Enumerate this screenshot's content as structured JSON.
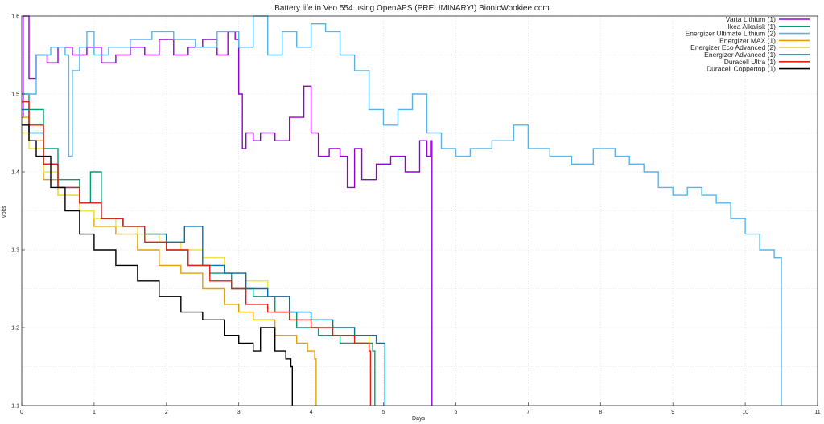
{
  "chart_data": {
    "type": "line",
    "title": "Battery life in Veo 554 using OpenAPS (PRELIMINARY!) BionicWookiee.com",
    "xlabel": "Days",
    "ylabel": "Volts",
    "xlim": [
      0,
      11
    ],
    "ylim": [
      1.1,
      1.6
    ],
    "xticks": [
      0,
      1,
      2,
      3,
      4,
      5,
      6,
      7,
      8,
      9,
      10,
      11
    ],
    "yticks": [
      1.1,
      1.2,
      1.3,
      1.4,
      1.5,
      1.6
    ],
    "ytick_labels": [
      "1.1",
      "1.2",
      "1.3",
      "1.4",
      "1.5",
      "1.6"
    ],
    "grid": true,
    "legend_position": "top-right",
    "step": true,
    "series": [
      {
        "name": "Varta Lithium (1)",
        "color": "#9400d3",
        "x": [
          0,
          0.02,
          0.1,
          0.2,
          0.35,
          0.5,
          0.7,
          0.9,
          1.1,
          1.3,
          1.5,
          1.7,
          1.9,
          2.1,
          2.3,
          2.5,
          2.7,
          2.85,
          2.95,
          3.0,
          3.05,
          3.1,
          3.2,
          3.3,
          3.5,
          3.7,
          3.9,
          4.0,
          4.1,
          4.25,
          4.4,
          4.5,
          4.6,
          4.7,
          4.9,
          5.1,
          5.3,
          5.5,
          5.6,
          5.65,
          5.67
        ],
        "y": [
          1.47,
          1.6,
          1.52,
          1.55,
          1.54,
          1.56,
          1.55,
          1.56,
          1.54,
          1.55,
          1.56,
          1.55,
          1.57,
          1.55,
          1.56,
          1.57,
          1.55,
          1.58,
          1.57,
          1.5,
          1.43,
          1.45,
          1.44,
          1.45,
          1.44,
          1.47,
          1.51,
          1.45,
          1.42,
          1.43,
          1.42,
          1.38,
          1.43,
          1.39,
          1.41,
          1.42,
          1.4,
          1.44,
          1.42,
          1.44,
          1.1
        ]
      },
      {
        "name": "Ikea Alkalisk (1)",
        "color": "#009e73",
        "x": [
          0,
          0.1,
          0.3,
          0.5,
          0.8,
          0.95,
          1.1,
          1.4,
          1.7,
          2.0,
          2.3,
          2.6,
          2.9,
          3.2,
          3.5,
          3.8,
          4.1,
          4.4,
          4.7,
          4.85,
          4.88
        ],
        "y": [
          1.5,
          1.48,
          1.43,
          1.39,
          1.36,
          1.4,
          1.34,
          1.33,
          1.32,
          1.3,
          1.28,
          1.27,
          1.25,
          1.24,
          1.22,
          1.2,
          1.19,
          1.18,
          1.18,
          1.17,
          1.1
        ]
      },
      {
        "name": "Energizer Ultimate Lithium (2)",
        "color": "#56b4e9",
        "x": [
          0,
          0.2,
          0.4,
          0.6,
          0.65,
          0.7,
          0.8,
          0.9,
          1.0,
          1.2,
          1.5,
          1.8,
          2.1,
          2.4,
          2.7,
          3.0,
          3.2,
          3.4,
          3.6,
          3.8,
          4.0,
          4.2,
          4.4,
          4.6,
          4.8,
          5.0,
          5.2,
          5.4,
          5.6,
          5.8,
          6.0,
          6.2,
          6.5,
          6.8,
          7.0,
          7.3,
          7.6,
          7.9,
          8.2,
          8.4,
          8.6,
          8.8,
          9.0,
          9.2,
          9.4,
          9.6,
          9.8,
          10.0,
          10.2,
          10.4,
          10.5
        ],
        "y": [
          1.5,
          1.55,
          1.56,
          1.55,
          1.42,
          1.53,
          1.56,
          1.58,
          1.55,
          1.56,
          1.57,
          1.58,
          1.57,
          1.56,
          1.58,
          1.56,
          1.6,
          1.55,
          1.58,
          1.56,
          1.59,
          1.58,
          1.55,
          1.53,
          1.48,
          1.46,
          1.48,
          1.5,
          1.45,
          1.43,
          1.42,
          1.43,
          1.44,
          1.46,
          1.43,
          1.42,
          1.41,
          1.43,
          1.42,
          1.41,
          1.4,
          1.38,
          1.37,
          1.38,
          1.37,
          1.36,
          1.34,
          1.32,
          1.3,
          1.29,
          1.1
        ]
      },
      {
        "name": "Energizer MAX (1)",
        "color": "#e69f00",
        "x": [
          0,
          0.1,
          0.3,
          0.5,
          0.8,
          1.0,
          1.3,
          1.6,
          1.9,
          2.2,
          2.5,
          2.8,
          3.0,
          3.2,
          3.5,
          3.8,
          3.95,
          4.05,
          4.07
        ],
        "y": [
          1.47,
          1.44,
          1.39,
          1.37,
          1.35,
          1.33,
          1.32,
          1.3,
          1.28,
          1.27,
          1.25,
          1.23,
          1.22,
          1.21,
          1.19,
          1.18,
          1.17,
          1.16,
          1.1
        ]
      },
      {
        "name": "Energizer Eco Advanced (2)",
        "color": "#f0e442",
        "x": [
          0,
          0.1,
          0.3,
          0.5,
          0.8,
          1.0,
          1.3,
          1.6,
          1.9,
          2.2,
          2.5,
          2.8,
          3.1,
          3.4,
          3.7,
          4.0,
          4.3,
          4.6,
          4.8
        ],
        "y": [
          1.45,
          1.43,
          1.4,
          1.37,
          1.35,
          1.34,
          1.33,
          1.32,
          1.31,
          1.3,
          1.29,
          1.27,
          1.26,
          1.24,
          1.22,
          1.21,
          1.2,
          1.19,
          1.18
        ]
      },
      {
        "name": "Energizer Advanced (1)",
        "color": "#0072b2",
        "x": [
          0,
          0.1,
          0.3,
          0.5,
          0.8,
          1.1,
          1.4,
          1.7,
          2.0,
          2.25,
          2.5,
          2.8,
          3.1,
          3.4,
          3.7,
          4.0,
          4.3,
          4.6,
          4.9,
          5.0,
          5.02
        ],
        "y": [
          1.48,
          1.45,
          1.41,
          1.38,
          1.36,
          1.34,
          1.33,
          1.32,
          1.31,
          1.33,
          1.28,
          1.27,
          1.25,
          1.24,
          1.22,
          1.21,
          1.2,
          1.19,
          1.18,
          1.18,
          1.1
        ]
      },
      {
        "name": "Duracell Ultra (1)",
        "color": "#e51e10",
        "x": [
          0,
          0.1,
          0.3,
          0.5,
          0.8,
          1.1,
          1.4,
          1.7,
          2.0,
          2.3,
          2.6,
          2.9,
          3.1,
          3.4,
          3.7,
          4.0,
          4.3,
          4.6,
          4.8,
          4.82
        ],
        "y": [
          1.49,
          1.46,
          1.41,
          1.38,
          1.36,
          1.34,
          1.33,
          1.31,
          1.3,
          1.28,
          1.26,
          1.25,
          1.23,
          1.22,
          1.21,
          1.2,
          1.19,
          1.18,
          1.17,
          1.1
        ]
      },
      {
        "name": "Duracell Coppertop (1)",
        "color": "#000000",
        "x": [
          0,
          0.1,
          0.2,
          0.4,
          0.6,
          0.8,
          1.0,
          1.3,
          1.6,
          1.9,
          2.2,
          2.5,
          2.8,
          3.0,
          3.2,
          3.3,
          3.5,
          3.65,
          3.72,
          3.74
        ],
        "y": [
          1.46,
          1.44,
          1.42,
          1.38,
          1.35,
          1.32,
          1.3,
          1.28,
          1.26,
          1.24,
          1.22,
          1.21,
          1.19,
          1.18,
          1.17,
          1.2,
          1.17,
          1.16,
          1.15,
          1.1
        ]
      }
    ]
  }
}
